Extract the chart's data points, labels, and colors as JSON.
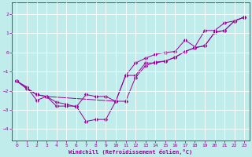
{
  "xlabel": "Windchill (Refroidissement éolien,°C)",
  "bg_color": "#c0ecec",
  "line_color": "#990099",
  "grid_color": "#ffffff",
  "xlim": [
    -0.5,
    23.5
  ],
  "ylim": [
    -4.6,
    2.6
  ],
  "xticks": [
    0,
    1,
    2,
    3,
    4,
    5,
    6,
    7,
    8,
    9,
    10,
    11,
    12,
    13,
    14,
    15,
    16,
    17,
    18,
    19,
    20,
    21,
    22,
    23
  ],
  "yticks": [
    -4,
    -3,
    -2,
    -1,
    0,
    1,
    2
  ],
  "line1_x": [
    0,
    1,
    2,
    3,
    4,
    5,
    6,
    7,
    8,
    9,
    10,
    11,
    12,
    13,
    14,
    15,
    16,
    17,
    18,
    19,
    20,
    21,
    22,
    23
  ],
  "line1_y": [
    -1.5,
    -1.8,
    -2.5,
    -2.3,
    -2.8,
    -2.8,
    -2.8,
    -3.6,
    -3.5,
    -3.5,
    -2.55,
    -1.2,
    -1.2,
    -0.55,
    -0.55,
    -0.45,
    -0.25,
    0.05,
    0.25,
    0.35,
    1.05,
    1.15,
    1.65,
    1.85
  ],
  "line2_x": [
    0,
    2,
    3,
    10,
    11,
    12,
    13,
    14,
    15,
    16,
    17,
    18,
    19,
    20,
    21,
    22,
    23
  ],
  "line2_y": [
    -1.5,
    -2.2,
    -2.3,
    -2.55,
    -1.2,
    -0.55,
    -0.3,
    -0.1,
    0.0,
    0.05,
    0.65,
    0.3,
    1.15,
    1.15,
    1.55,
    1.65,
    1.85
  ],
  "line3_x": [
    0,
    1,
    2,
    3,
    4,
    5,
    6,
    7,
    8,
    9,
    10,
    11,
    12,
    13,
    14,
    15,
    16,
    17,
    18,
    19,
    20,
    21,
    22,
    23
  ],
  "line3_y": [
    -1.5,
    -1.9,
    -2.2,
    -2.3,
    -2.6,
    -2.7,
    -2.85,
    -2.2,
    -2.3,
    -2.3,
    -2.55,
    -2.55,
    -1.3,
    -0.7,
    -0.5,
    -0.45,
    -0.25,
    0.05,
    0.25,
    0.35,
    1.05,
    1.15,
    1.65,
    1.85
  ]
}
